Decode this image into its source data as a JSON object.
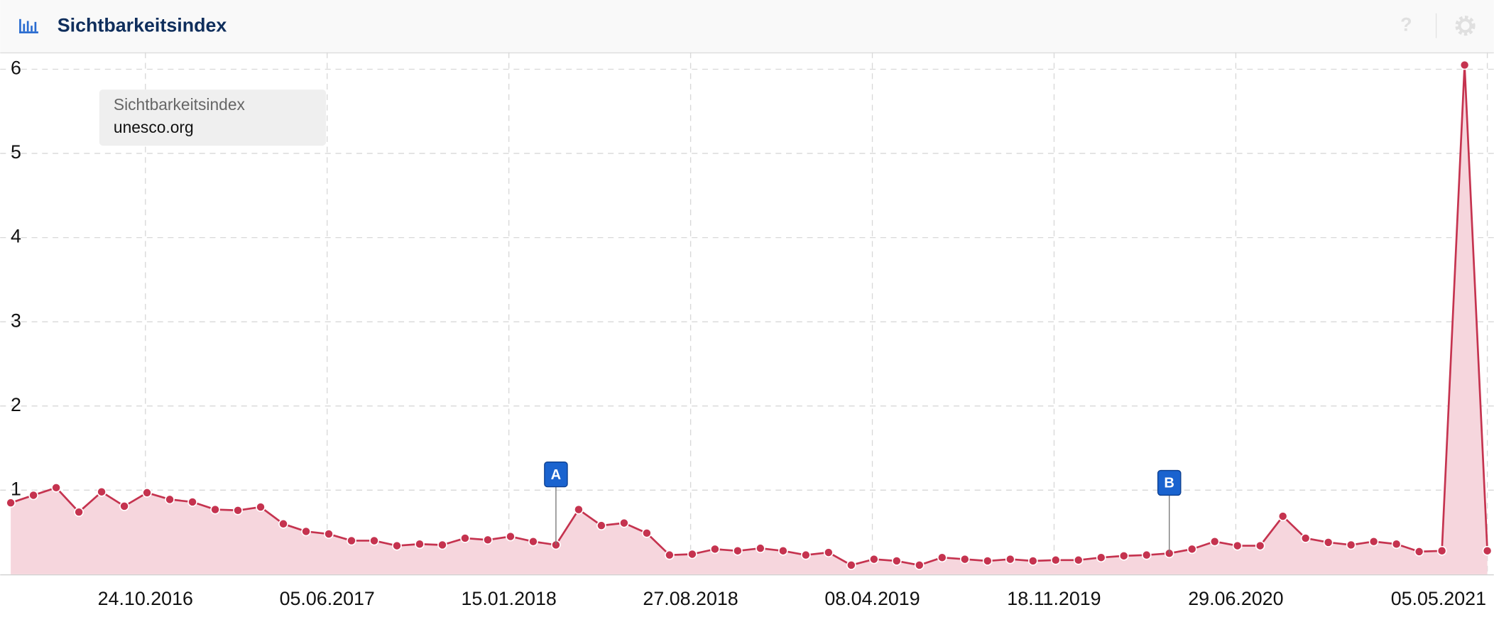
{
  "header": {
    "help": "?"
  },
  "chart_data": {
    "type": "line",
    "title": "Sichtbarkeitsindex",
    "legend_title": "Sichtbarkeitsindex",
    "x": [
      "11.05.2016",
      "08.06.2016",
      "06.07.2016",
      "03.08.2016",
      "31.08.2016",
      "28.09.2016",
      "26.10.2016",
      "23.11.2016",
      "21.12.2016",
      "18.01.2017",
      "15.02.2017",
      "15.03.2017",
      "12.04.2017",
      "10.05.2017",
      "07.06.2017",
      "05.07.2017",
      "02.08.2017",
      "30.08.2017",
      "27.09.2017",
      "25.10.2017",
      "22.11.2017",
      "20.12.2017",
      "17.01.2018",
      "14.02.2018",
      "14.03.2018",
      "11.04.2018",
      "09.05.2018",
      "06.06.2018",
      "04.07.2018",
      "01.08.2018",
      "29.08.2018",
      "26.09.2018",
      "24.10.2018",
      "21.11.2018",
      "19.12.2018",
      "16.01.2019",
      "13.02.2019",
      "13.03.2019",
      "10.04.2019",
      "08.05.2019",
      "05.06.2019",
      "03.07.2019",
      "31.07.2019",
      "28.08.2019",
      "25.09.2019",
      "23.10.2019",
      "20.11.2019",
      "18.12.2019",
      "15.01.2020",
      "12.02.2020",
      "11.03.2020",
      "08.04.2020",
      "06.05.2020",
      "03.06.2020",
      "01.07.2020",
      "29.07.2020",
      "26.08.2020",
      "23.09.2020",
      "21.10.2020",
      "18.11.2020",
      "16.12.2020",
      "13.01.2021",
      "10.02.2021",
      "10.03.2021",
      "07.04.2021",
      "05.05.2021"
    ],
    "series": [
      {
        "name": "unesco.org",
        "color": "#c5334f",
        "fill": "#f6d6dd",
        "values": [
          0.85,
          0.94,
          1.03,
          0.74,
          0.98,
          0.81,
          0.97,
          0.89,
          0.86,
          0.77,
          0.76,
          0.8,
          0.6,
          0.51,
          0.48,
          0.4,
          0.4,
          0.34,
          0.36,
          0.35,
          0.43,
          0.41,
          0.45,
          0.39,
          0.35,
          0.77,
          0.58,
          0.61,
          0.49,
          0.23,
          0.24,
          0.3,
          0.28,
          0.31,
          0.28,
          0.23,
          0.26,
          0.11,
          0.18,
          0.16,
          0.11,
          0.2,
          0.18,
          0.16,
          0.18,
          0.16,
          0.17,
          0.17,
          0.2,
          0.22,
          0.23,
          0.25,
          0.3,
          0.39,
          0.34,
          0.34,
          0.69,
          0.43,
          0.38,
          0.35,
          0.39,
          0.36,
          0.27,
          0.28,
          6.05,
          0.28
        ]
      }
    ],
    "xlim": [
      "28.04.2016",
      "13.05.2021"
    ],
    "xticks": [
      "24.10.2016",
      "05.06.2017",
      "15.01.2018",
      "27.08.2018",
      "08.04.2019",
      "18.11.2019",
      "29.06.2020",
      "05.05.2021"
    ],
    "ylim": [
      0,
      6.2
    ],
    "yticks": [
      1,
      2,
      3,
      4,
      5,
      6
    ],
    "grid": true,
    "annotations": [
      {
        "label": "A",
        "x": "14.03.2018"
      },
      {
        "label": "B",
        "x": "08.04.2020"
      }
    ]
  }
}
